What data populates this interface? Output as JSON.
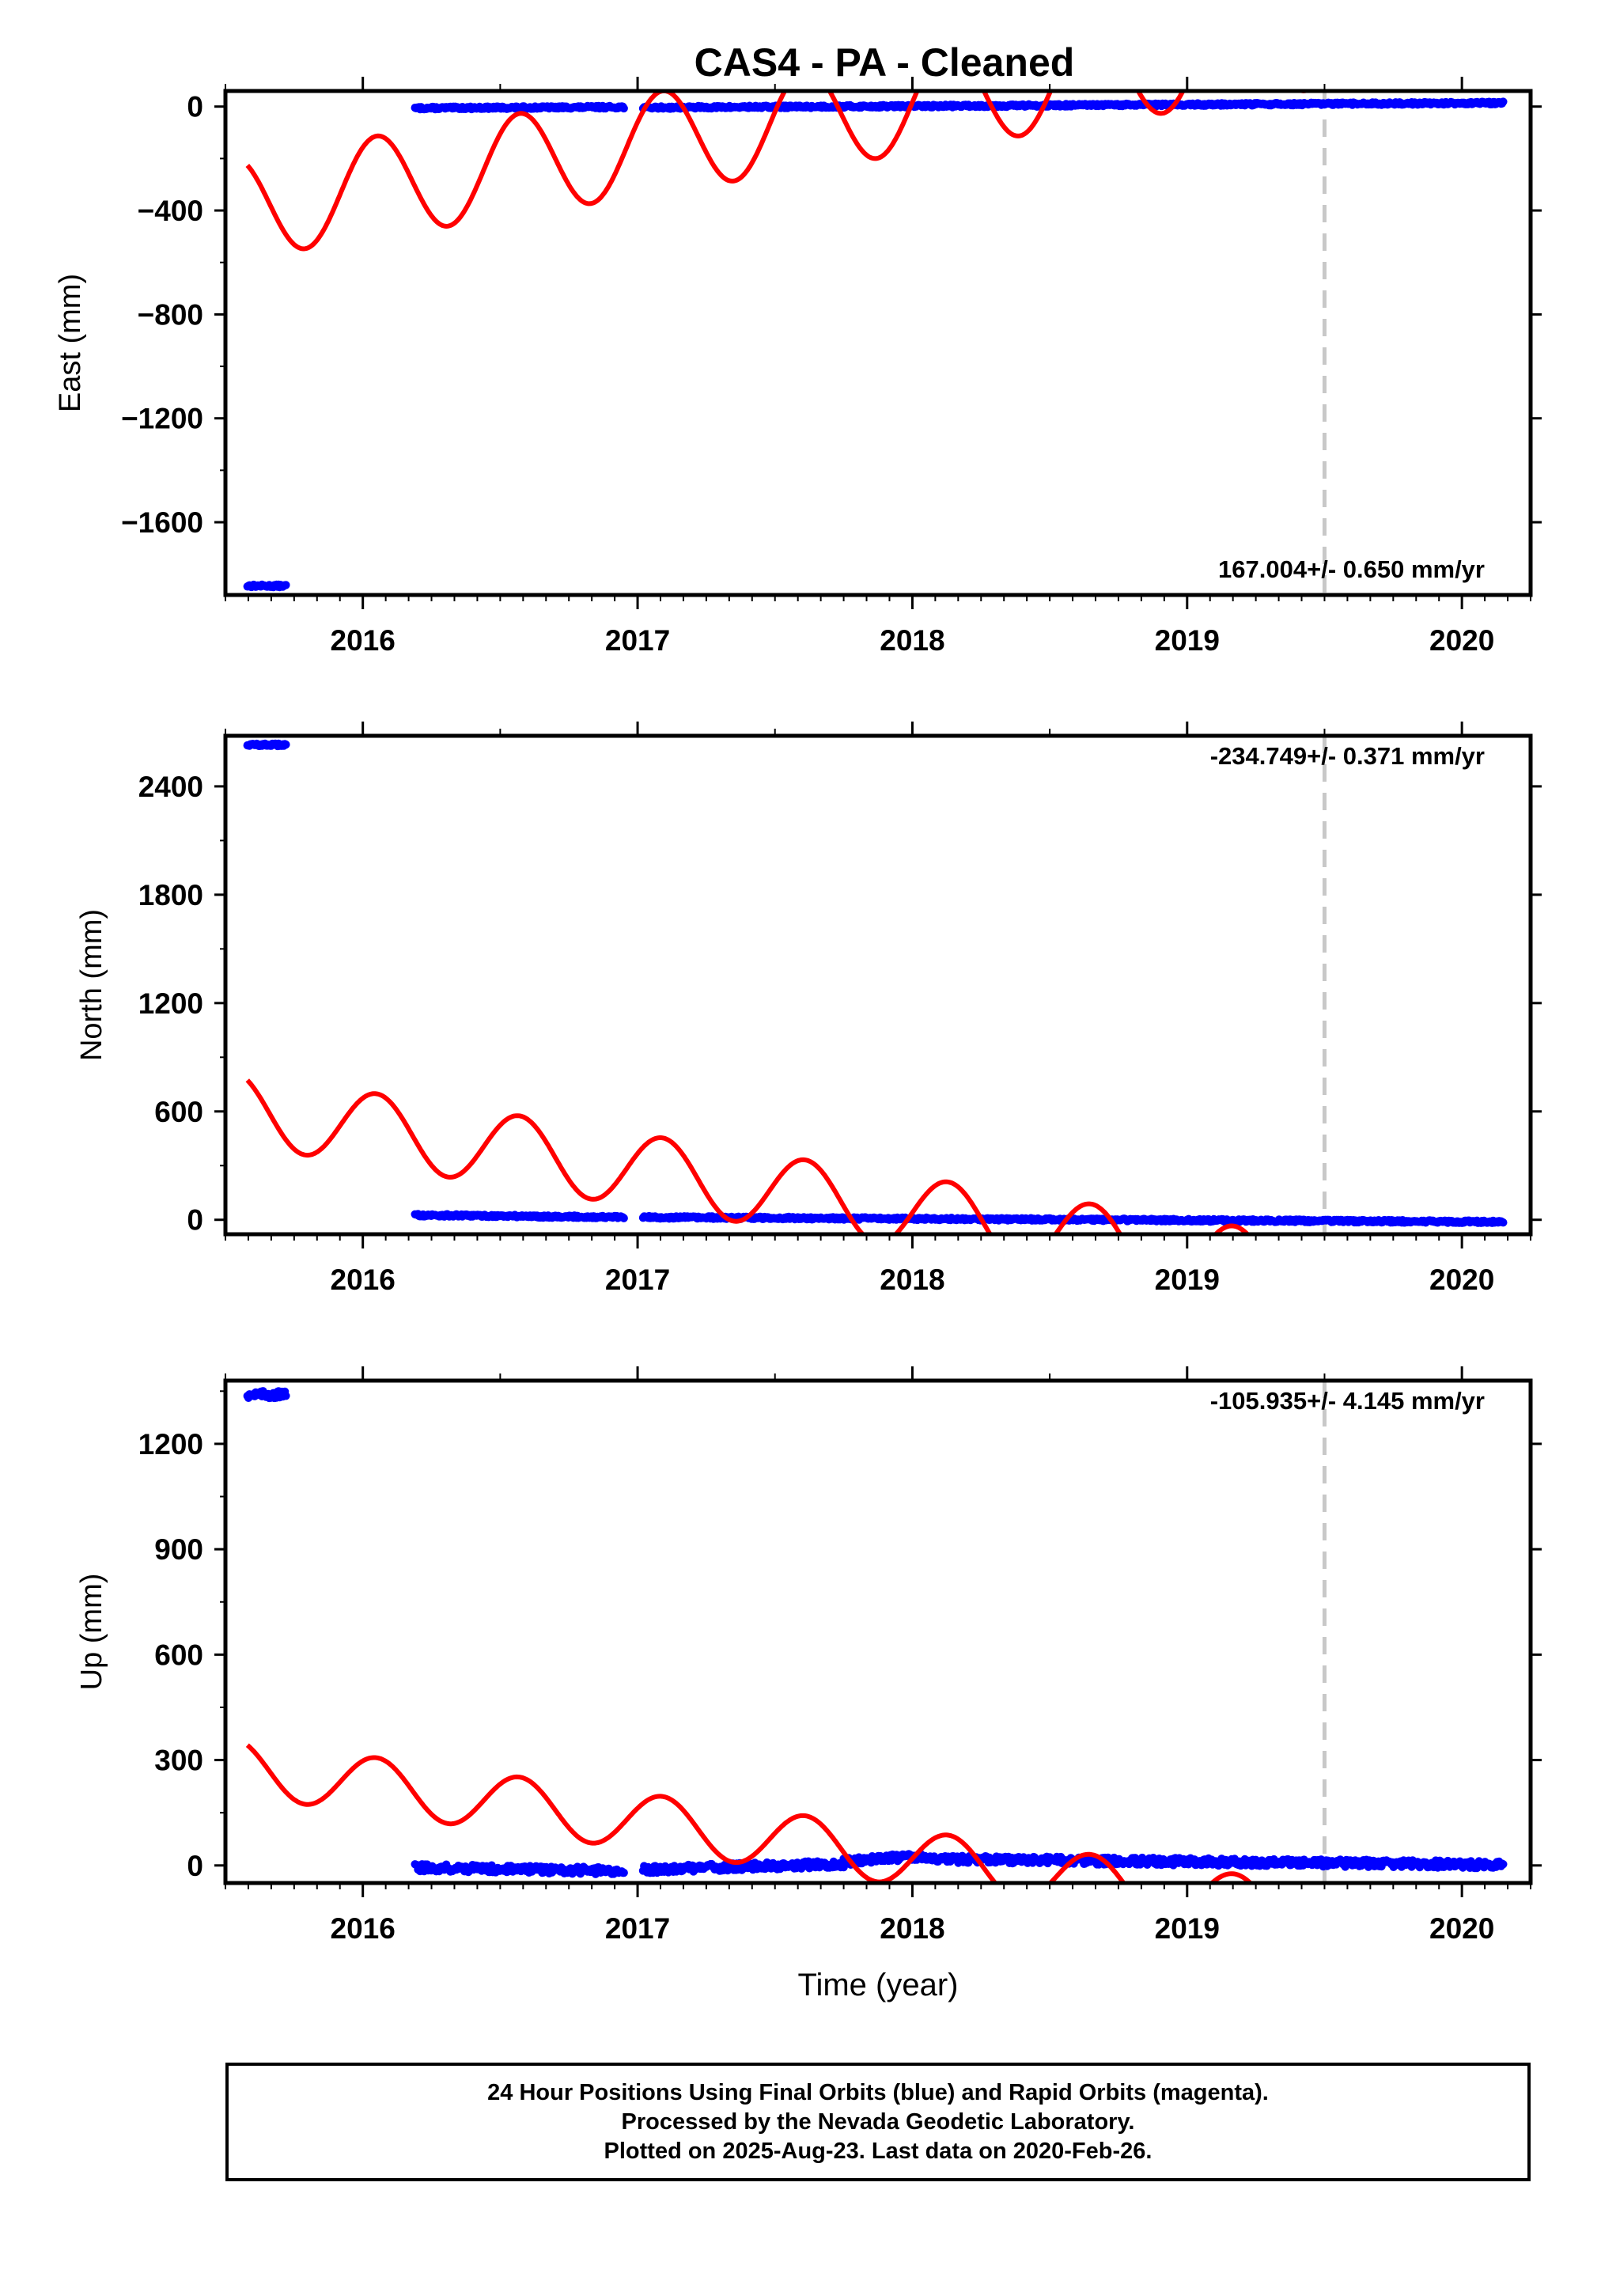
{
  "title": "CAS4  - PA - Cleaned",
  "footer": {
    "line1": "24 Hour Positions Using Final Orbits (blue) and Rapid Orbits (magenta).",
    "line2": "Processed by the Nevada Geodetic Laboratory.",
    "line3": "Plotted on 2025-Aug-23. Last data on 2020-Feb-26."
  },
  "colors": {
    "final_orbits": "#0000ff",
    "model": "#ff0000",
    "offset_line": "#c8c8c8"
  },
  "chart_data": [
    {
      "type": "scatter",
      "ylabel": "East (mm)",
      "xlabel": "",
      "rate_label": "167.004+/- 0.650 mm/yr",
      "rate_position": "bottom-right",
      "xlim": [
        2015.5,
        2020.25
      ],
      "ylim": [
        -1880,
        60
      ],
      "yticks": [
        "0",
        "−400",
        "−800",
        "−1200",
        "−1600"
      ],
      "ytick_values": [
        0,
        -400,
        -800,
        -1200,
        -1600
      ],
      "xticks": [
        "2016",
        "2017",
        "2018",
        "2019",
        "2020"
      ],
      "offset_epoch": 2019.5,
      "series": [
        {
          "segments": [
            {
              "x": [
                2015.58,
                2015.72
              ],
              "y": [
                -1845,
                -1845
              ]
            },
            {
              "x": [
                2016.19,
                2016.95
              ],
              "y": [
                -6,
                -2
              ]
            },
            {
              "x": [
                2017.02,
                2020.15
              ],
              "y": [
                -4,
                14
              ]
            }
          ]
        },
        {
          "model": {
            "x_range": [
              2015.58,
              2020.25
            ],
            "segments": [
              [
                2015.58,
                2019.5
              ],
              [
                2019.5,
                2020.25
              ]
            ],
            "offset": 17,
            "trend": 167.004,
            "t0": 2018.0,
            "decay": 0.48,
            "amp": 195,
            "period": 0.52,
            "phase": 0.6
          }
        }
      ]
    },
    {
      "type": "scatter",
      "ylabel": "North (mm)",
      "xlabel": "",
      "rate_label": "-234.749+/- 0.371 mm/yr",
      "rate_position": "top-right",
      "xlim": [
        2015.5,
        2020.25
      ],
      "ylim": [
        -80,
        2680
      ],
      "yticks": [
        "0",
        "600",
        "1200",
        "1800",
        "2400"
      ],
      "ytick_values": [
        0,
        600,
        1200,
        1800,
        2400
      ],
      "xticks": [
        "2016",
        "2017",
        "2018",
        "2019",
        "2020"
      ],
      "offset_epoch": 2019.5,
      "series": [
        {
          "segments": [
            {
              "x": [
                2015.58,
                2015.72
              ],
              "y": [
                2630,
                2630
              ]
            },
            {
              "x": [
                2016.19,
                2016.95
              ],
              "y": [
                26,
                14
              ]
            },
            {
              "x": [
                2017.02,
                2020.15
              ],
              "y": [
                14,
                -12
              ]
            }
          ]
        },
        {
          "model": {
            "x_range": [
              2015.58,
              2020.25
            ],
            "segments": [
              [
                2015.58,
                2019.5
              ],
              [
                2019.5,
                2020.25
              ]
            ],
            "offset": 40,
            "trend": -234.749,
            "t0": 2018.0,
            "decay": 0.48,
            "amp": 200,
            "period": 0.52,
            "phase": 0.6
          }
        }
      ]
    },
    {
      "type": "scatter",
      "ylabel": "Up (mm)",
      "xlabel": "Time (year)",
      "rate_label": "-105.935+/- 4.145 mm/yr",
      "rate_position": "top-right",
      "xlim": [
        2015.5,
        2020.25
      ],
      "ylim": [
        -50,
        1380
      ],
      "yticks": [
        "0",
        "300",
        "600",
        "900",
        "1200"
      ],
      "ytick_values": [
        0,
        300,
        600,
        900,
        1200
      ],
      "xticks": [
        "2016",
        "2017",
        "2018",
        "2019",
        "2020"
      ],
      "offset_epoch": 2019.5,
      "series": [
        {
          "segments": [
            {
              "x": [
                2015.58,
                2015.72
              ],
              "y": [
                1340,
                1340
              ]
            },
            {
              "x": [
                2016.19,
                2016.95
              ],
              "y": [
                -6,
                -16
              ]
            },
            {
              "x": [
                2017.02,
                2017.75
              ],
              "y": [
                -12,
                5
              ]
            },
            {
              "x": [
                2017.75,
                2018.05
              ],
              "y": [
                10,
                28
              ]
            },
            {
              "x": [
                2018.05,
                2020.15
              ],
              "y": [
                18,
                2
              ]
            }
          ]
        },
        {
          "model": {
            "x_range": [
              2015.58,
              2020.25
            ],
            "segments": [
              [
                2015.58,
                2019.5
              ],
              [
                2019.5,
                2020.25
              ]
            ],
            "offset": 20,
            "trend": -105.935,
            "t0": 2018.0,
            "decay": 0.48,
            "amp": 80,
            "period": 0.52,
            "phase": 0.6
          }
        }
      ]
    }
  ]
}
